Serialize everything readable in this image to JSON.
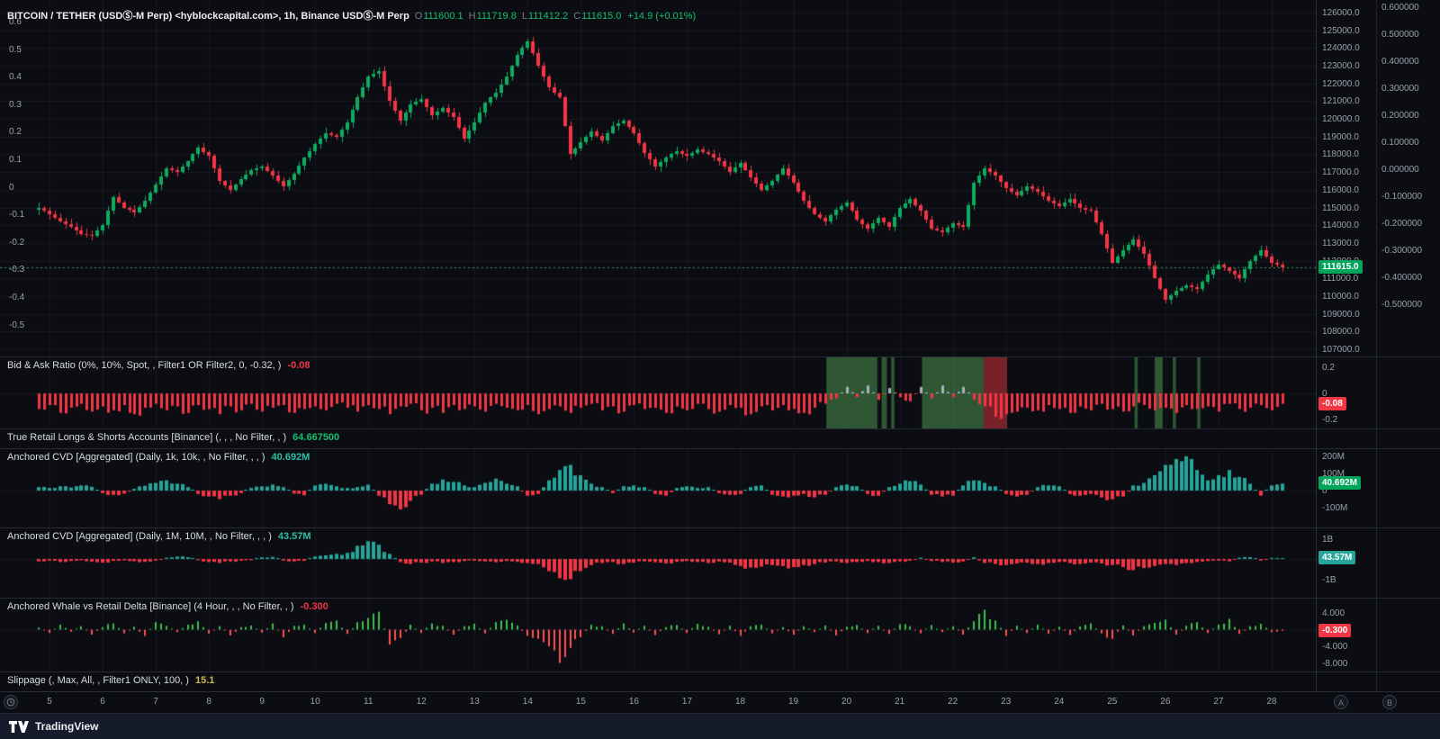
{
  "legends": {
    "main": {
      "symbol": "BITCOIN / TETHER (USDⓈ-M Perp) <hyblockcapital.com>, 1h, Binance USDⓈ-M Perp",
      "o_label": "O",
      "o": "111600.1",
      "h_label": "H",
      "h": "111719.8",
      "l_label": "L",
      "l": "111412.2",
      "c_label": "C",
      "c": "111615.0",
      "change": "+14.9 (+0.01%)"
    },
    "bidask": {
      "title": "Bid & Ask Ratio (0%, 10%, Spot, , Filter1 OR Filter2, 0, -0.32, )",
      "value": "-0.08"
    },
    "retail": {
      "title": "True Retail Longs & Shorts Accounts [Binance] (, , , No Filter, , )",
      "value": "64.667500"
    },
    "cvd1": {
      "title": "Anchored CVD [Aggregated] (Daily, 1k, 10k, , No Filter, , , )",
      "value": "40.692M"
    },
    "cvd2": {
      "title": "Anchored CVD [Aggregated] (Daily, 1M, 10M, , No Filter, , , )",
      "value": "43.57M"
    },
    "whale": {
      "title": "Anchored Whale vs Retail Delta [Binance] (4 Hour, , , No Filter, , )",
      "value": "-0.300"
    },
    "slippage": {
      "title": "Slippage (, Max, All, , Filter1 ONLY, 100, )",
      "value": "15.1"
    }
  },
  "axes": {
    "price_ticks": [
      "126000.0",
      "125000.0",
      "124000.0",
      "123000.0",
      "122000.0",
      "121000.0",
      "120000.0",
      "119000.0",
      "118000.0",
      "117000.0",
      "116000.0",
      "115000.0",
      "114000.0",
      "113000.0",
      "112000.0",
      "111000.0",
      "110000.0",
      "109000.0",
      "108000.0",
      "107000.0"
    ],
    "left_ticks": [
      "0.6",
      "0.5",
      "0.4",
      "0.3",
      "0.2",
      "0.1",
      "0",
      "-0.1",
      "-0.2",
      "-0.3",
      "-0.4",
      "-0.5"
    ],
    "far_ticks": [
      "0.600000",
      "0.500000",
      "0.400000",
      "0.300000",
      "0.200000",
      "0.100000",
      "0.000000",
      "-0.100000",
      "-0.200000",
      "-0.300000",
      "-0.400000",
      "-0.500000"
    ],
    "bidask_ticks": [
      "0.2",
      "0",
      "-0.2"
    ],
    "cvd1_ticks": [
      "200M",
      "100M",
      "0",
      "-100M"
    ],
    "cvd2_ticks": [
      "1B",
      "-1B"
    ],
    "whale_ticks": [
      "4.000",
      "-4.000",
      "-8.000"
    ],
    "badges": {
      "price": "111615.0",
      "bidask": "-0.08",
      "cvd1": "40.692M",
      "cvd2": "43.57M",
      "whale": "-0.300"
    }
  },
  "timeline": {
    "labels": [
      "5",
      "6",
      "7",
      "8",
      "9",
      "10",
      "11",
      "12",
      "13",
      "14",
      "15",
      "16",
      "17",
      "18",
      "19",
      "20",
      "21",
      "22",
      "23",
      "24",
      "25",
      "26",
      "27",
      "28"
    ]
  },
  "buttons": {
    "scale_a": "A",
    "scale_b": "B"
  },
  "footer": {
    "brand": "TradingView"
  },
  "colors": {
    "up": "#0fab5e",
    "down": "#f23645",
    "pos": "#26a69a",
    "neg": "#f23645",
    "whale_up": "#3fbf4f",
    "whale_down": "#ff5252",
    "bid_pos": "#aab0bc",
    "zone_green": "rgba(56,106,60,0.8)",
    "zone_red": "rgba(146,40,46,0.8)",
    "grid": "rgba(240,243,250,0.05)",
    "price_line": "#2ea05c"
  },
  "chart_data": [
    {
      "id": "price",
      "type": "candlestick",
      "title": "BITCOIN / TETHER (USDⓈ-M Perp), 1h, Binance USDⓈ-M Perp",
      "x_start_day": 4.8,
      "x_step_days": 0.2,
      "last_price": 111615.0,
      "ylim": [
        107000,
        126500
      ],
      "closes": [
        115000,
        114600,
        114200,
        113900,
        113500,
        113400,
        114000,
        115600,
        115000,
        114700,
        115400,
        116300,
        117200,
        117000,
        117600,
        118400,
        117900,
        116500,
        116000,
        116600,
        117100,
        117300,
        116800,
        116200,
        116900,
        117800,
        118600,
        119200,
        119000,
        119800,
        121200,
        122400,
        122700,
        121000,
        119900,
        120800,
        121100,
        120200,
        120600,
        120100,
        118900,
        119800,
        120900,
        121500,
        122400,
        123600,
        124400,
        123000,
        121800,
        121200,
        118000,
        118700,
        119300,
        118800,
        119600,
        119900,
        119200,
        118100,
        117300,
        117800,
        118200,
        117900,
        118300,
        118000,
        117600,
        117000,
        117500,
        116700,
        116000,
        116500,
        117200,
        116400,
        115400,
        114600,
        114200,
        114900,
        115300,
        114300,
        113800,
        114400,
        113900,
        115000,
        115500,
        114800,
        113800,
        113600,
        114100,
        113900,
        116400,
        117200,
        116800,
        116100,
        115700,
        116200,
        115900,
        115400,
        115100,
        115500,
        115000,
        114800,
        113500,
        111900,
        112600,
        113200,
        112400,
        111000,
        109800,
        110300,
        110600,
        110400,
        111200,
        111800,
        111400,
        111000,
        112000,
        112600,
        111900,
        111615
      ]
    },
    {
      "id": "bid_ask_ratio",
      "type": "bar",
      "last": -0.08,
      "ylim": [
        -0.28,
        0.28
      ],
      "values": [
        -0.12,
        -0.09,
        -0.15,
        -0.11,
        -0.08,
        -0.14,
        -0.1,
        -0.13,
        -0.09,
        -0.16,
        -0.11,
        -0.08,
        -0.13,
        -0.1,
        -0.15,
        -0.09,
        -0.12,
        -0.16,
        -0.1,
        -0.13,
        -0.08,
        -0.14,
        -0.11,
        -0.09,
        -0.15,
        -0.12,
        -0.1,
        -0.13,
        -0.08,
        -0.11,
        -0.14,
        -0.09,
        -0.12,
        -0.16,
        -0.1,
        -0.08,
        -0.13,
        -0.11,
        -0.15,
        -0.09,
        -0.12,
        -0.1,
        -0.14,
        -0.08,
        -0.11,
        -0.13,
        -0.09,
        -0.16,
        -0.12,
        -0.1,
        -0.15,
        -0.11,
        -0.08,
        -0.13,
        -0.1,
        -0.14,
        -0.09,
        -0.12,
        -0.11,
        -0.15,
        -0.1,
        -0.13,
        -0.08,
        -0.12,
        -0.14,
        -0.09,
        -0.11,
        -0.16,
        -0.1,
        -0.13,
        -0.09,
        -0.12,
        -0.15,
        -0.11,
        -0.08,
        -0.04,
        0.05,
        -0.03,
        0.06,
        -0.05,
        0.04,
        -0.03,
        -0.06,
        0.05,
        -0.04,
        0.06,
        -0.03,
        0.05,
        -0.05,
        -0.1,
        -0.18,
        -0.16,
        -0.14,
        -0.11,
        -0.13,
        -0.09,
        -0.12,
        -0.15,
        -0.1,
        -0.13,
        -0.08,
        -0.12,
        -0.14,
        -0.1,
        -0.09,
        -0.13,
        -0.11,
        -0.15,
        -0.09,
        -0.12,
        -0.1,
        -0.14,
        -0.08,
        -0.12,
        -0.11,
        -0.09,
        -0.13,
        -0.08
      ],
      "zones": [
        {
          "s": 19.62,
          "e": 20.58,
          "c": "green"
        },
        {
          "s": 20.66,
          "e": 20.76,
          "c": "green"
        },
        {
          "s": 20.84,
          "e": 20.9,
          "c": "green"
        },
        {
          "s": 21.42,
          "e": 22.58,
          "c": "green"
        },
        {
          "s": 22.58,
          "e": 23.02,
          "c": "red"
        },
        {
          "s": 25.42,
          "e": 25.48,
          "c": "green"
        },
        {
          "s": 25.8,
          "e": 25.95,
          "c": "green"
        },
        {
          "s": 26.14,
          "e": 26.2,
          "c": "green"
        },
        {
          "s": 26.6,
          "e": 26.66,
          "c": "green"
        }
      ]
    },
    {
      "id": "retail_accounts",
      "type": "collapsed",
      "last": 64.6675
    },
    {
      "id": "cvd_1k_10k",
      "type": "bar",
      "unit": "M",
      "last_label": "40.692M",
      "ylim_m": [
        -130,
        230
      ],
      "values": [
        20,
        15,
        25,
        18,
        30,
        22,
        -15,
        -25,
        -18,
        10,
        28,
        45,
        60,
        40,
        20,
        -20,
        -35,
        -50,
        -30,
        -15,
        15,
        25,
        35,
        20,
        -18,
        -28,
        30,
        40,
        25,
        15,
        20,
        35,
        -30,
        -80,
        -110,
        -60,
        -25,
        40,
        65,
        50,
        30,
        20,
        45,
        70,
        40,
        25,
        -30,
        -20,
        60,
        120,
        150,
        90,
        40,
        20,
        -15,
        25,
        30,
        20,
        -20,
        -30,
        15,
        25,
        15,
        20,
        -15,
        -25,
        -20,
        20,
        30,
        -25,
        -35,
        -30,
        -20,
        -40,
        -25,
        20,
        35,
        25,
        -20,
        -30,
        20,
        40,
        55,
        35,
        -25,
        -35,
        -30,
        30,
        60,
        45,
        25,
        -20,
        -35,
        -25,
        20,
        30,
        25,
        -20,
        -30,
        -20,
        -40,
        -50,
        -35,
        30,
        45,
        90,
        150,
        185,
        200,
        120,
        60,
        90,
        120,
        80,
        40,
        -30,
        30,
        41
      ]
    },
    {
      "id": "cvd_1m_10m",
      "type": "bar",
      "unit": "M",
      "last_label": "43.57M",
      "ylim_m": [
        -1100,
        1100
      ],
      "values": [
        -120,
        -80,
        -150,
        -100,
        -60,
        -130,
        -180,
        -90,
        -60,
        -110,
        -140,
        -80,
        60,
        120,
        80,
        -60,
        -150,
        -200,
        -120,
        -80,
        -60,
        80,
        100,
        -80,
        -120,
        -90,
        120,
        180,
        250,
        300,
        650,
        880,
        700,
        250,
        -150,
        -250,
        -180,
        -120,
        -200,
        -150,
        -100,
        -80,
        -120,
        -160,
        -100,
        -140,
        -200,
        -250,
        -600,
        -950,
        -1000,
        -600,
        -300,
        -200,
        -150,
        -250,
        -180,
        -120,
        -160,
        -220,
        -140,
        -100,
        -150,
        -200,
        -120,
        -180,
        -350,
        -420,
        -380,
        -300,
        -350,
        -400,
        -300,
        -250,
        -180,
        -120,
        -200,
        -150,
        -100,
        -150,
        -200,
        -120,
        -80,
        60,
        -100,
        -150,
        -180,
        -120,
        80,
        -200,
        -250,
        -300,
        -220,
        -180,
        -250,
        -200,
        -150,
        -200,
        -250,
        -180,
        -220,
        -300,
        -400,
        -550,
        -450,
        -350,
        -250,
        -300,
        -200,
        -150,
        -100,
        -80,
        -120,
        60,
        90,
        -80,
        50,
        44
      ]
    },
    {
      "id": "whale_retail_delta",
      "type": "bar",
      "last": -0.3,
      "ylim": [
        -9,
        5
      ],
      "values": [
        0.5,
        -0.8,
        1.2,
        -0.5,
        0.8,
        -1.2,
        0.6,
        1.5,
        -0.9,
        0.7,
        -1.5,
        1.8,
        0.9,
        -0.6,
        1.2,
        2.0,
        -1.0,
        0.8,
        -1.4,
        0.6,
        1.0,
        -0.7,
        1.5,
        -1.8,
        0.9,
        1.2,
        -0.8,
        1.6,
        2.2,
        -1.0,
        1.8,
        2.8,
        4.3,
        -3.6,
        -2.0,
        1.2,
        -0.8,
        1.5,
        0.9,
        -1.2,
        0.8,
        1.4,
        -0.9,
        1.8,
        2.4,
        1.0,
        -1.5,
        -2.2,
        -4.0,
        -8.0,
        -4.4,
        -1.8,
        1.2,
        0.8,
        -1.0,
        1.5,
        -0.7,
        0.9,
        -1.3,
        0.6,
        1.1,
        -0.8,
        1.4,
        0.7,
        -1.1,
        0.9,
        -1.5,
        0.8,
        1.2,
        -0.9,
        0.6,
        -1.2,
        0.8,
        -0.6,
        1.0,
        -1.4,
        0.7,
        1.1,
        -0.8,
        0.9,
        -1.0,
        1.3,
        0.8,
        -0.9,
        1.1,
        -0.6,
        0.8,
        -1.2,
        2.0,
        4.8,
        2.2,
        -1.5,
        0.9,
        -0.8,
        1.2,
        -1.0,
        0.7,
        -1.3,
        0.8,
        1.5,
        -0.9,
        -2.2,
        1.0,
        -1.4,
        0.8,
        1.6,
        2.4,
        -1.2,
        0.9,
        1.8,
        -0.8,
        1.2,
        2.6,
        -1.0,
        0.8,
        1.4,
        -0.6,
        -0.3
      ]
    },
    {
      "id": "slippage",
      "type": "collapsed",
      "last": 15.1
    }
  ]
}
